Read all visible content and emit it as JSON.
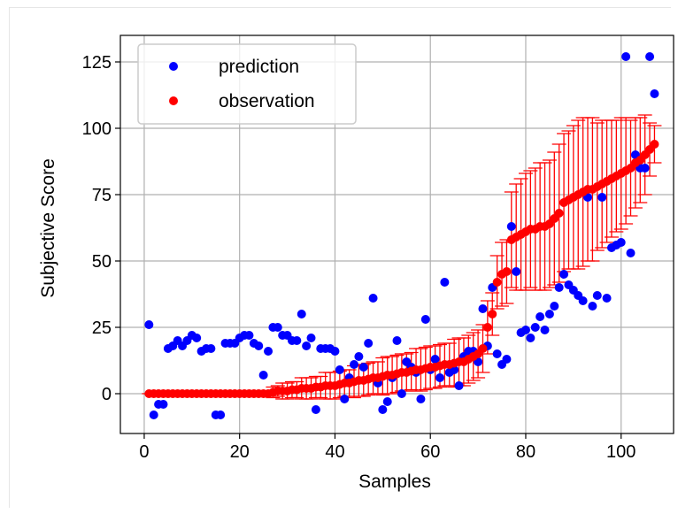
{
  "chart_data": {
    "type": "scatter",
    "title": "",
    "xlabel": "Samples",
    "ylabel": "Subjective Score",
    "xlim": [
      -5,
      111
    ],
    "ylim": [
      -15,
      135
    ],
    "xticks": [
      0,
      20,
      40,
      60,
      80,
      100
    ],
    "yticks": [
      0,
      25,
      50,
      75,
      100,
      125
    ],
    "grid": true,
    "legend": {
      "placement": "top-left",
      "entries": [
        {
          "label": "prediction",
          "color": "#0000ff"
        },
        {
          "label": "observation",
          "color": "#ff0000"
        }
      ]
    },
    "series": [
      {
        "name": "prediction",
        "color": "#0000ff",
        "x": [
          1,
          2,
          3,
          4,
          5,
          6,
          7,
          8,
          9,
          10,
          11,
          12,
          13,
          14,
          15,
          16,
          17,
          18,
          19,
          20,
          21,
          22,
          23,
          24,
          25,
          26,
          27,
          28,
          29,
          30,
          31,
          32,
          33,
          34,
          35,
          36,
          37,
          38,
          39,
          40,
          41,
          42,
          43,
          44,
          45,
          46,
          47,
          48,
          49,
          50,
          51,
          52,
          53,
          54,
          55,
          56,
          57,
          58,
          59,
          60,
          61,
          62,
          63,
          64,
          65,
          66,
          67,
          68,
          69,
          70,
          71,
          72,
          73,
          74,
          75,
          76,
          77,
          78,
          79,
          80,
          81,
          82,
          83,
          84,
          85,
          86,
          87,
          88,
          89,
          90,
          91,
          92,
          93,
          94,
          95,
          96,
          97,
          98,
          99,
          100,
          101,
          102,
          103,
          104,
          105,
          106,
          107
        ],
        "y": [
          26,
          -8,
          -4,
          -4,
          17,
          18,
          20,
          18,
          20,
          22,
          21,
          16,
          17,
          17,
          -8,
          -8,
          19,
          19,
          19,
          21,
          22,
          22,
          19,
          18,
          7,
          16,
          25,
          25,
          22,
          22,
          20,
          20,
          30,
          18,
          21,
          -6,
          17,
          17,
          17,
          16,
          9,
          -2,
          6,
          11,
          14,
          10,
          19,
          36,
          4,
          -6,
          -3,
          6,
          20,
          0,
          12,
          10,
          8,
          -2,
          28,
          9,
          13,
          6,
          42,
          8,
          9,
          3,
          14,
          16,
          16,
          12,
          32,
          18,
          40,
          15,
          11,
          13,
          63,
          46,
          23,
          24,
          21,
          25,
          29,
          24,
          30,
          33,
          40,
          45,
          41,
          39,
          37,
          35,
          74,
          33,
          37,
          74,
          36,
          55,
          56,
          57,
          127,
          53,
          90,
          85,
          85,
          127,
          113
        ]
      },
      {
        "name": "observation",
        "color": "#ff0000",
        "x": [
          1,
          2,
          3,
          4,
          5,
          6,
          7,
          8,
          9,
          10,
          11,
          12,
          13,
          14,
          15,
          16,
          17,
          18,
          19,
          20,
          21,
          22,
          23,
          24,
          25,
          26,
          27,
          28,
          29,
          30,
          31,
          32,
          33,
          34,
          35,
          36,
          37,
          38,
          39,
          40,
          41,
          42,
          43,
          44,
          45,
          46,
          47,
          48,
          49,
          50,
          51,
          52,
          53,
          54,
          55,
          56,
          57,
          58,
          59,
          60,
          61,
          62,
          63,
          64,
          65,
          66,
          67,
          68,
          69,
          70,
          71,
          72,
          73,
          74,
          75,
          76,
          77,
          78,
          79,
          80,
          81,
          82,
          83,
          84,
          85,
          86,
          87,
          88,
          89,
          90,
          91,
          92,
          93,
          94,
          95,
          96,
          97,
          98,
          99,
          100,
          101,
          102,
          103,
          104,
          105,
          106,
          107
        ],
        "y": [
          0,
          0,
          0,
          0,
          0,
          0,
          0,
          0,
          0,
          0,
          0,
          0,
          0,
          0,
          0,
          0,
          0,
          0,
          0,
          0,
          0,
          0,
          0,
          0,
          0,
          0,
          0.5,
          1,
          1,
          1,
          1.5,
          1.5,
          2,
          2,
          2,
          2.5,
          2.5,
          3,
          3,
          3,
          3.5,
          4,
          4,
          4.5,
          5,
          5,
          5.5,
          6,
          6,
          6.5,
          7,
          7,
          7.5,
          8,
          8,
          8.5,
          9,
          9,
          9.5,
          10,
          10,
          10.5,
          11,
          11,
          11.5,
          12,
          12,
          13,
          14,
          15,
          17,
          25,
          30,
          42,
          45,
          46,
          58,
          59,
          60,
          61,
          62,
          62,
          63,
          63,
          64,
          66,
          68,
          72,
          73,
          74,
          75,
          76,
          77,
          77,
          78,
          79,
          80,
          81,
          82,
          83,
          84,
          85,
          87,
          88,
          90,
          92,
          94
        ],
        "yerr": [
          0,
          0,
          0,
          0,
          0,
          0,
          0,
          0,
          0,
          0,
          0,
          0,
          0,
          0,
          0,
          0,
          0,
          0,
          0,
          0,
          0,
          0,
          0,
          0,
          0,
          0,
          2,
          2,
          3,
          3,
          3,
          3,
          4,
          4,
          4,
          4,
          4,
          5,
          5,
          5,
          5,
          5,
          5,
          6,
          6,
          6,
          6,
          6,
          6,
          7,
          7,
          7,
          7,
          7,
          7,
          7,
          8,
          8,
          8,
          8,
          8,
          8,
          8,
          8,
          9,
          9,
          9,
          9,
          9,
          9,
          9,
          10,
          8,
          10,
          12,
          12,
          18,
          20,
          21,
          22,
          22,
          23,
          24,
          24,
          24,
          25,
          26,
          26,
          26,
          27,
          28,
          28,
          27,
          27,
          24,
          24,
          23,
          22,
          21,
          21,
          20,
          18,
          17,
          16,
          15,
          10,
          7
        ]
      }
    ]
  }
}
